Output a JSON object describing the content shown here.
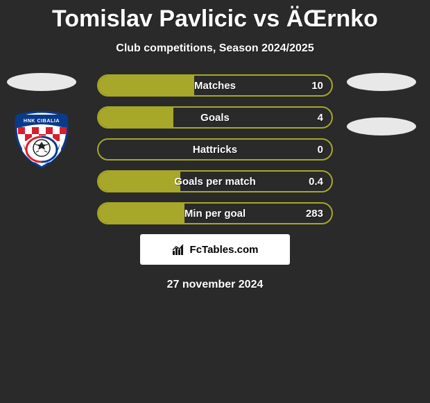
{
  "header": {
    "title": "Tomislav Pavlicic vs ÄŒrnko",
    "subtitle": "Club competitions, Season 2024/2025"
  },
  "colors": {
    "bar_border": "#a7a72a",
    "bar_fill": "#a7a72a",
    "background": "#2a2a2a",
    "oval": "#e8e8e8"
  },
  "stats": [
    {
      "label": "Matches",
      "value": "10",
      "fill_ratio": 0.41
    },
    {
      "label": "Goals",
      "value": "4",
      "fill_ratio": 0.32
    },
    {
      "label": "Hattricks",
      "value": "0",
      "fill_ratio": 0.0
    },
    {
      "label": "Goals per match",
      "value": "0.4",
      "fill_ratio": 0.35
    },
    {
      "label": "Min per goal",
      "value": "283",
      "fill_ratio": 0.37
    }
  ],
  "footer": {
    "site_label": "FcTables.com",
    "date": "27 november 2024"
  },
  "left_badge": {
    "text_top": "HNK CIBALIA"
  }
}
